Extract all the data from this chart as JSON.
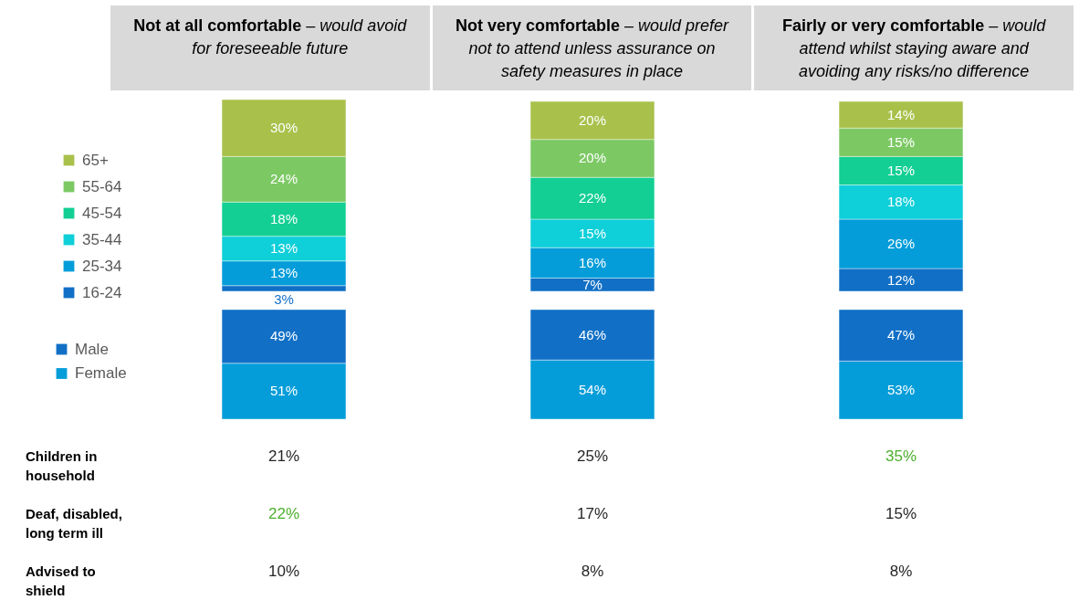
{
  "chart_data": [
    {
      "type": "bar",
      "stacked": true,
      "categories": [
        "Not at all comfortable – would avoid for foreseeable future",
        "Not very comfortable – would prefer not to attend unless assurance on safety measures in place",
        "Fairly or very comfortable – would attend whilst staying aware and avoiding any risks/no difference"
      ],
      "series": [
        {
          "name": "16-24",
          "color": "#1170c6",
          "values": [
            3,
            7,
            12
          ],
          "value_labels": [
            "3%",
            "7%",
            "12%"
          ]
        },
        {
          "name": "25-34",
          "color": "#049dd9",
          "values": [
            13,
            16,
            26
          ],
          "value_labels": [
            "13%",
            "16%",
            "26%"
          ]
        },
        {
          "name": "35-44",
          "color": "#0fcfd9",
          "values": [
            13,
            15,
            18
          ],
          "value_labels": [
            "13%",
            "15%",
            "18%"
          ]
        },
        {
          "name": "45-54",
          "color": "#13cf93",
          "values": [
            18,
            22,
            15
          ],
          "value_labels": [
            "18%",
            "22%",
            "15%"
          ]
        },
        {
          "name": "55-64",
          "color": "#7cc964",
          "values": [
            24,
            20,
            15
          ],
          "value_labels": [
            "24%",
            "20%",
            "15%"
          ]
        },
        {
          "name": "65+",
          "color": "#a9c14b",
          "values": [
            30,
            20,
            14
          ],
          "value_labels": [
            "30%",
            "20%",
            "14%"
          ]
        }
      ],
      "legend": "left",
      "tick_labels": "x"
    },
    {
      "type": "bar",
      "stacked": true,
      "categories": [
        null,
        null,
        null
      ],
      "series": [
        {
          "name": "Female",
          "color": "#049dd9",
          "values": [
            51,
            54,
            53
          ],
          "value_labels": [
            "51%",
            "54%",
            "53%"
          ]
        },
        {
          "name": "Male",
          "color": "#1170c6",
          "values": [
            49,
            46,
            47
          ],
          "value_labels": [
            "49%",
            "46%",
            "47%"
          ]
        }
      ],
      "legend": "left"
    },
    {
      "type": "heatmap",
      "categories": [
        null,
        null,
        null
      ],
      "y_categories": [
        "Children in household",
        "Deaf, disabled, long term ill",
        "Advised to shield"
      ],
      "cells": [
        [
          21,
          25,
          35
        ],
        [
          22,
          17,
          15
        ],
        [
          10,
          8,
          8
        ]
      ],
      "cell_labels": [
        [
          "21%",
          "25%",
          "35%"
        ],
        [
          "22%",
          "17%",
          "15%"
        ],
        [
          "10%",
          "8%",
          "8%"
        ]
      ],
      "colors": [
        [
          "#262626",
          "#262626",
          "#4caf2e"
        ],
        [
          "#4caf2e",
          "#262626",
          "#262626"
        ],
        [
          "#262626",
          "#262626",
          "#262626"
        ]
      ]
    }
  ]
}
